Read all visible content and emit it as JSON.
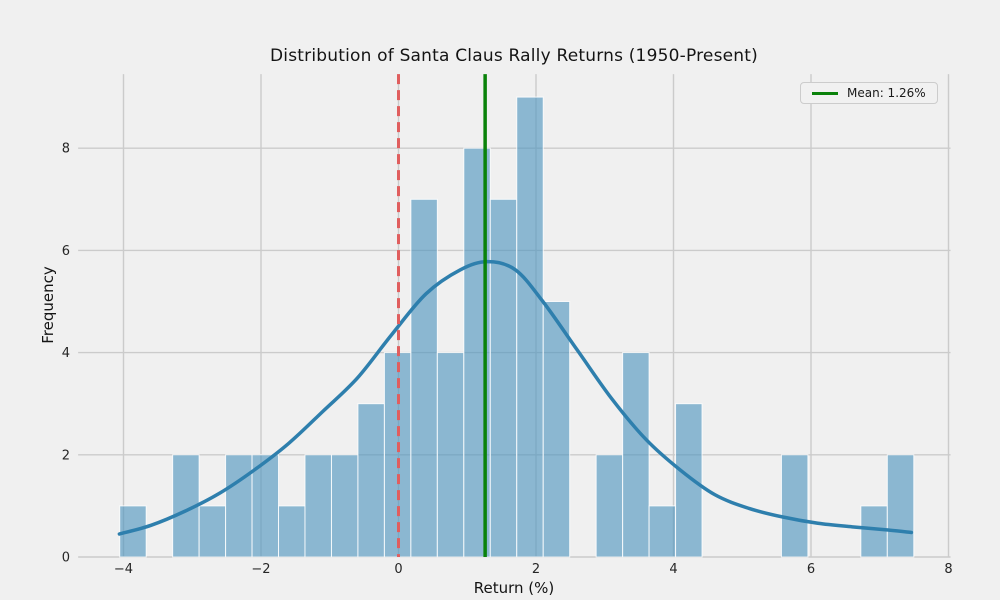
{
  "figure": {
    "background_color": "#f0f0f0",
    "grid_color": "#cbcbcb",
    "text_color": "#141414"
  },
  "chart_data": {
    "type": "bar",
    "subtype": "histogram-with-kde",
    "title": "Distribution of Santa Claus Rally Returns (1950-Present)",
    "xlabel": "Return (%)",
    "ylabel": "Frequency",
    "xlim": [
      -4.66,
      8.03
    ],
    "ylim": [
      0,
      9.45
    ],
    "grid": true,
    "x_ticks": [
      -4,
      -2,
      0,
      2,
      4,
      6,
      8
    ],
    "x_tick_labels": [
      "−4",
      "−2",
      "0",
      "2",
      "4",
      "6",
      "8"
    ],
    "y_ticks": [
      0,
      2,
      4,
      6,
      8
    ],
    "y_tick_labels": [
      "0",
      "2",
      "4",
      "6",
      "8"
    ],
    "histogram": {
      "bin_start": -4.055,
      "bin_width": 0.385,
      "counts": [
        1,
        0,
        2,
        1,
        2,
        2,
        1,
        2,
        2,
        3,
        4,
        7,
        4,
        8,
        7,
        9,
        5,
        0,
        2,
        4,
        1,
        3,
        0,
        0,
        0,
        2,
        0,
        0,
        1,
        2
      ],
      "total_observations": 75,
      "bar_color": "#4e94bf",
      "bar_alpha": 0.62,
      "bar_edge_color": "#ffffff"
    },
    "kde": {
      "color": "#2e7fad",
      "line_width": 3.5,
      "points": [
        [
          -4.06,
          0.45
        ],
        [
          -3.6,
          0.62
        ],
        [
          -3.1,
          0.9
        ],
        [
          -2.6,
          1.25
        ],
        [
          -2.1,
          1.7
        ],
        [
          -1.6,
          2.22
        ],
        [
          -1.1,
          2.85
        ],
        [
          -0.6,
          3.5
        ],
        [
          -0.1,
          4.35
        ],
        [
          0.4,
          5.15
        ],
        [
          0.9,
          5.62
        ],
        [
          1.3,
          5.78
        ],
        [
          1.7,
          5.62
        ],
        [
          2.1,
          5.0
        ],
        [
          2.6,
          4.05
        ],
        [
          3.1,
          3.1
        ],
        [
          3.6,
          2.3
        ],
        [
          4.1,
          1.7
        ],
        [
          4.6,
          1.22
        ],
        [
          5.1,
          0.95
        ],
        [
          5.6,
          0.78
        ],
        [
          6.1,
          0.66
        ],
        [
          6.6,
          0.59
        ],
        [
          7.1,
          0.53
        ],
        [
          7.46,
          0.48
        ]
      ]
    },
    "zero_line": {
      "x": 0,
      "color": "#e05e5e",
      "style": "dashed",
      "line_width": 3
    },
    "mean_line": {
      "x": 1.26,
      "color": "#0a820a",
      "style": "solid",
      "line_width": 3.5,
      "label": "Mean: 1.26%"
    },
    "legend": {
      "position": "upper-right",
      "label": "Mean: 1.26%"
    }
  }
}
